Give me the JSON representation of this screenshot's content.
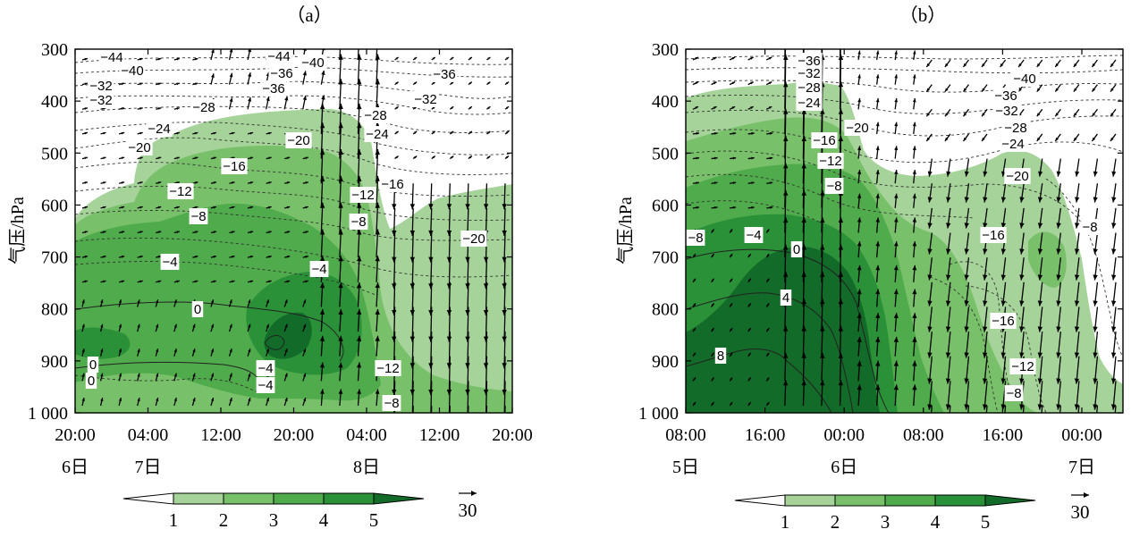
{
  "chart_data": [
    {
      "type": "heatmap",
      "panel_title": "（a）",
      "ylabel": "气压/hPa",
      "y_ticks": [
        "300",
        "400",
        "500",
        "600",
        "700",
        "800",
        "900",
        "1 000"
      ],
      "y_values": [
        300,
        400,
        500,
        600,
        700,
        800,
        900,
        1000
      ],
      "ylim": [
        1000,
        300
      ],
      "x_ticks": [
        "20:00",
        "04:00",
        "12:00",
        "20:00",
        "04:00",
        "12:00",
        "20:00"
      ],
      "date_labels": [
        {
          "text": "6日",
          "tick": 0
        },
        {
          "text": "7日",
          "tick": 1
        },
        {
          "text": "8日",
          "tick": 4
        }
      ],
      "contour_labels": [
        "-44",
        "-40",
        "-44",
        "-36",
        "-40",
        "-36",
        "-32",
        "-36",
        "-32",
        "-32",
        "-28",
        "-28",
        "-24",
        "-24",
        "-20",
        "-20",
        "-16",
        "-16",
        "-12",
        "-12",
        "-8",
        "-8",
        "-20",
        "-4",
        "-4",
        "0",
        "0",
        "-4",
        "0",
        "-4",
        "-12",
        "-8"
      ],
      "vectors": "wind vectors",
      "fill_levels": [
        1,
        2,
        3,
        4,
        5
      ],
      "fill_colors": [
        "#ffffff",
        "#a6d39a",
        "#79c06a",
        "#4fab4b",
        "#2a9138",
        "#126b28"
      ]
    },
    {
      "type": "heatmap",
      "panel_title": "（b）",
      "ylabel": "气压/hPa",
      "y_ticks": [
        "300",
        "400",
        "500",
        "600",
        "700",
        "800",
        "900",
        "1 000"
      ],
      "y_values": [
        300,
        400,
        500,
        600,
        700,
        800,
        900,
        1000
      ],
      "ylim": [
        1000,
        300
      ],
      "x_ticks": [
        "08:00",
        "16:00",
        "00:00",
        "08:00",
        "16:00",
        "00:00"
      ],
      "date_labels": [
        {
          "text": "5日",
          "tick": 0
        },
        {
          "text": "6日",
          "tick": 2
        },
        {
          "text": "7日",
          "tick": 5
        }
      ],
      "contour_labels": [
        "-36",
        "-32",
        "-28",
        "-24",
        "-20",
        "-16",
        "-12",
        "-8",
        "-40",
        "-36",
        "-32",
        "-28",
        "-24",
        "-20",
        "-8",
        "-4",
        "0",
        "4",
        "8",
        "-16",
        "-8",
        "-16",
        "-12",
        "-8"
      ],
      "fill_levels": [
        1,
        2,
        3,
        4,
        5
      ],
      "fill_colors": [
        "#ffffff",
        "#a6d39a",
        "#79c06a",
        "#4fab4b",
        "#2a9138",
        "#126b28"
      ]
    }
  ],
  "colorbar": {
    "labels": [
      "1",
      "2",
      "3",
      "4",
      "5"
    ],
    "colors": [
      "#ffffff",
      "#a6d39a",
      "#79c06a",
      "#4fab4b",
      "#2a9138",
      "#126b28"
    ]
  },
  "vector_reference": {
    "value": "30"
  }
}
